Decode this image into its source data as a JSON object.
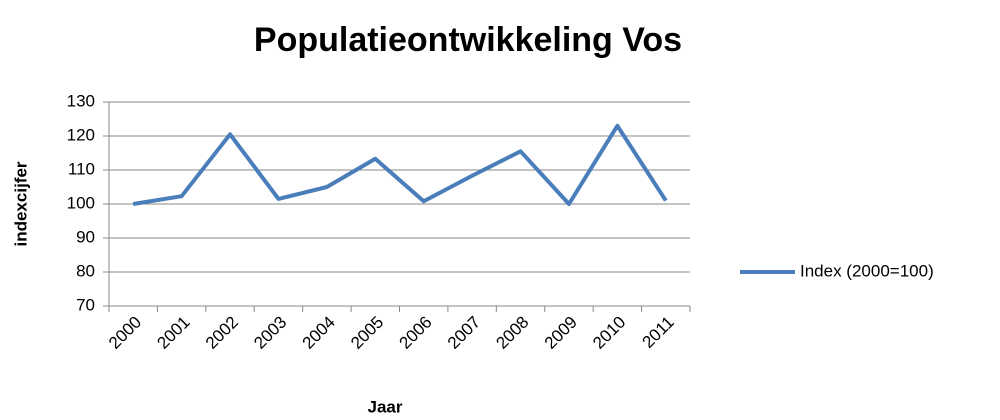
{
  "chart_data": {
    "type": "line",
    "title": "Populatieontwikkeling Vos",
    "x_label": "Jaar",
    "y_label": "indexcijfer",
    "categories": [
      "2000",
      "2001",
      "2002",
      "2003",
      "2004",
      "2005",
      "2006",
      "2007",
      "2008",
      "2009",
      "2010",
      "2011"
    ],
    "series": [
      {
        "name": "Index (2000=100)",
        "color": "#4a7ebb",
        "values": [
          100,
          102.3,
          120.5,
          101.5,
          105,
          113.3,
          100.8,
          108.3,
          115.5,
          100,
          123,
          101
        ]
      }
    ],
    "ylim": [
      70,
      130
    ],
    "yticks": [
      70,
      80,
      90,
      100,
      110,
      120,
      130
    ],
    "grid": true,
    "legend": "right"
  }
}
